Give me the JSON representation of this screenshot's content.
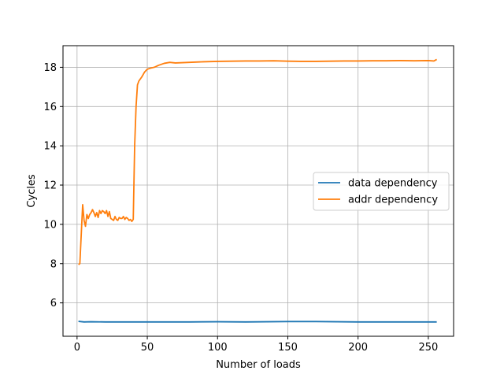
{
  "chart_data": {
    "type": "line",
    "xlabel": "Number of loads",
    "ylabel": "Cycles",
    "xlim": [
      -10,
      268
    ],
    "ylim": [
      4.3,
      19.1
    ],
    "xticks": [
      0,
      50,
      100,
      150,
      200,
      250
    ],
    "yticks": [
      6,
      8,
      10,
      12,
      14,
      16,
      18
    ],
    "grid": true,
    "legend_position": "center-right",
    "series": [
      {
        "name": "data dependency",
        "color": "#1f77b4",
        "points": [
          [
            1,
            5.06
          ],
          [
            5,
            5.03
          ],
          [
            10,
            5.04
          ],
          [
            20,
            5.03
          ],
          [
            40,
            5.03
          ],
          [
            60,
            5.03
          ],
          [
            80,
            5.03
          ],
          [
            100,
            5.04
          ],
          [
            120,
            5.03
          ],
          [
            150,
            5.05
          ],
          [
            170,
            5.05
          ],
          [
            200,
            5.03
          ],
          [
            230,
            5.03
          ],
          [
            256,
            5.03
          ]
        ]
      },
      {
        "name": "addr dependency",
        "color": "#ff7f0e",
        "points": [
          [
            1,
            7.95
          ],
          [
            2,
            8.0
          ],
          [
            3,
            9.5
          ],
          [
            4,
            11.0
          ],
          [
            5,
            10.2
          ],
          [
            6,
            9.9
          ],
          [
            7,
            10.5
          ],
          [
            8,
            10.3
          ],
          [
            9,
            10.5
          ],
          [
            10,
            10.6
          ],
          [
            11,
            10.75
          ],
          [
            12,
            10.6
          ],
          [
            13,
            10.4
          ],
          [
            14,
            10.6
          ],
          [
            15,
            10.35
          ],
          [
            16,
            10.7
          ],
          [
            17,
            10.55
          ],
          [
            18,
            10.7
          ],
          [
            19,
            10.65
          ],
          [
            20,
            10.55
          ],
          [
            21,
            10.7
          ],
          [
            22,
            10.4
          ],
          [
            23,
            10.65
          ],
          [
            24,
            10.3
          ],
          [
            25,
            10.25
          ],
          [
            26,
            10.2
          ],
          [
            27,
            10.4
          ],
          [
            28,
            10.25
          ],
          [
            29,
            10.2
          ],
          [
            30,
            10.35
          ],
          [
            31,
            10.3
          ],
          [
            32,
            10.3
          ],
          [
            33,
            10.4
          ],
          [
            34,
            10.25
          ],
          [
            35,
            10.35
          ],
          [
            36,
            10.3
          ],
          [
            37,
            10.2
          ],
          [
            38,
            10.25
          ],
          [
            39,
            10.15
          ],
          [
            40,
            10.25
          ],
          [
            41,
            14.0
          ],
          [
            42,
            16.0
          ],
          [
            43,
            17.1
          ],
          [
            44,
            17.3
          ],
          [
            46,
            17.5
          ],
          [
            48,
            17.75
          ],
          [
            50,
            17.9
          ],
          [
            52,
            17.95
          ],
          [
            55,
            18.0
          ],
          [
            58,
            18.1
          ],
          [
            62,
            18.2
          ],
          [
            66,
            18.25
          ],
          [
            70,
            18.22
          ],
          [
            80,
            18.25
          ],
          [
            90,
            18.28
          ],
          [
            100,
            18.3
          ],
          [
            110,
            18.31
          ],
          [
            120,
            18.32
          ],
          [
            130,
            18.32
          ],
          [
            140,
            18.33
          ],
          [
            150,
            18.31
          ],
          [
            160,
            18.3
          ],
          [
            170,
            18.3
          ],
          [
            180,
            18.31
          ],
          [
            190,
            18.32
          ],
          [
            200,
            18.32
          ],
          [
            210,
            18.33
          ],
          [
            220,
            18.33
          ],
          [
            230,
            18.34
          ],
          [
            240,
            18.33
          ],
          [
            250,
            18.34
          ],
          [
            254,
            18.32
          ],
          [
            256,
            18.4
          ]
        ]
      }
    ]
  }
}
